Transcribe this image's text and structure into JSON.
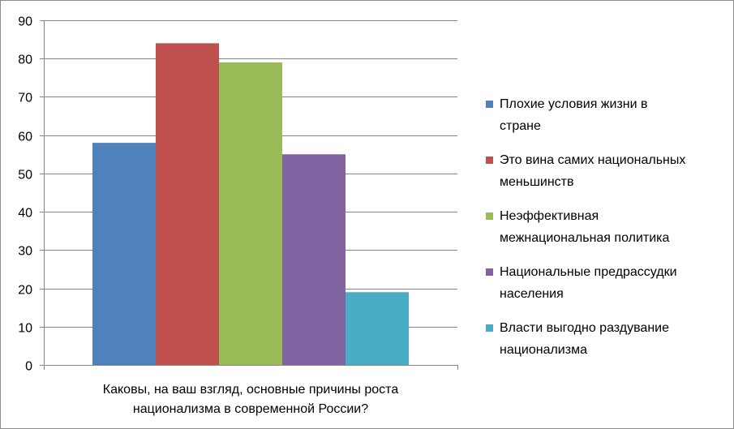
{
  "chart_data": {
    "type": "bar",
    "categories": [
      "Каковы, на ваш взгляд, основные причины роста национализма в современной России?"
    ],
    "category_label_lines": [
      "Каковы, на ваш взгляд, основные причины роста",
      "национализма в современной России?"
    ],
    "series": [
      {
        "name": "Плохие условия жизни в стране",
        "name_lines": [
          "Плохие условия жизни в",
          "стране"
        ],
        "values": [
          58
        ],
        "color": "#4F81BD"
      },
      {
        "name": "Это вина самих национальных меньшинств",
        "name_lines": [
          "Это вина самих национальных",
          "меньшинств"
        ],
        "values": [
          84
        ],
        "color": "#C0504D"
      },
      {
        "name": "Неэффективная межнациональная политика",
        "name_lines": [
          "Неэффективная",
          "межнациональная политика"
        ],
        "values": [
          79
        ],
        "color": "#9BBB59"
      },
      {
        "name": "Национальные предрассудки населения",
        "name_lines": [
          "Национальные предрассудки",
          "населения"
        ],
        "values": [
          55
        ],
        "color": "#8064A2"
      },
      {
        "name": "Власти выгодно раздувание национализма",
        "name_lines": [
          "Власти выгодно раздувание",
          "национализма"
        ],
        "values": [
          19
        ],
        "color": "#4BACC6"
      }
    ],
    "yticks": [
      "0",
      "10",
      "20",
      "30",
      "40",
      "50",
      "60",
      "70",
      "80",
      "90"
    ],
    "ylim": [
      0,
      90
    ],
    "grid": true,
    "legend_position": "right",
    "gridline_color": "#868686"
  }
}
